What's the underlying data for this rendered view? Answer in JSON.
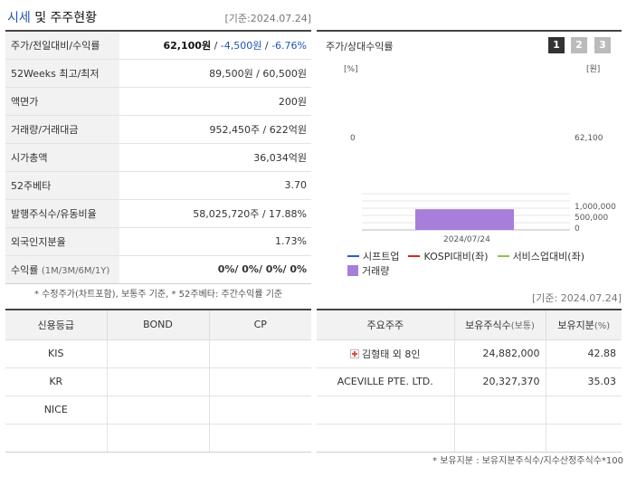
{
  "header": {
    "title_accent": "시세",
    "title_rest": " 및 주주현황",
    "ref_date": "[기준:2024.07.24]"
  },
  "price_table": {
    "rows": [
      {
        "label": "주가/전일대비/수익률",
        "price": "62,100원",
        "sep1": " / ",
        "change": "-4,500원",
        "sep2": " / ",
        "rate": "-6.76%"
      },
      {
        "label": "52Weeks 최고/최저",
        "value": "89,500원 / 60,500원"
      },
      {
        "label": "액면가",
        "value": "200원"
      },
      {
        "label": "거래량/거래대금",
        "value": "952,450주 / 622억원"
      },
      {
        "label": "시가총액",
        "value": "36,034억원"
      },
      {
        "label": "52주베타",
        "value": "3.70"
      },
      {
        "label": "발행주식수/유동비율",
        "value": "58,025,720주 / 17.88%"
      },
      {
        "label": "외국인지분율",
        "value": "1.73%"
      },
      {
        "label": "수익률",
        "label_small": "(1M/3M/6M/1Y)",
        "value": "0%/ 0%/ 0%/ 0%"
      }
    ],
    "footnote": "* 수정주가(차트포함), 보통주 기준, * 52주베타: 주간수익률 기준"
  },
  "chart": {
    "title": "주가/상대수익률",
    "tabs": [
      "1",
      "2",
      "3"
    ],
    "left_unit": "[%]",
    "right_unit": "[원]",
    "left_zero": "0",
    "right_price": "62,100",
    "volume_ticks": [
      "1,000,000",
      "500,000",
      "0"
    ],
    "x_label": "2024/07/24",
    "legend": [
      {
        "name": "시프트업",
        "color": "#2a5bd7",
        "kind": "line"
      },
      {
        "name": "KOSPI대비(좌)",
        "color": "#d9261c",
        "kind": "line"
      },
      {
        "name": "서비스업대비(좌)",
        "color": "#8bc34a",
        "kind": "line"
      },
      {
        "name": "거래량",
        "color": "#a77ed9",
        "kind": "box"
      }
    ],
    "chart_data": {
      "type": "bar",
      "categories": [
        "2024/07/24"
      ],
      "series": [
        {
          "name": "거래량",
          "values": [
            952450
          ]
        }
      ],
      "ylim": [
        0,
        1000000
      ]
    }
  },
  "rating": {
    "headers": [
      "신용등급",
      "BOND",
      "CP"
    ],
    "rows": [
      [
        "KIS",
        "",
        ""
      ],
      [
        "KR",
        "",
        ""
      ],
      [
        "NICE",
        "",
        ""
      ],
      [
        "",
        "",
        ""
      ]
    ]
  },
  "holders": {
    "ref_date": "[기준: 2024.07.24]",
    "headers": [
      {
        "text": "주요주주",
        "small": ""
      },
      {
        "text": "보유주식수",
        "small": "(보통)"
      },
      {
        "text": "보유지분",
        "small": "(%)"
      }
    ],
    "rows": [
      {
        "name": "김형태 외 8인",
        "shares": "24,882,000",
        "pct": "42.88",
        "expand": true
      },
      {
        "name": "ACEVILLE PTE. LTD.",
        "shares": "20,327,370",
        "pct": "35.03",
        "expand": false
      },
      {
        "name": "",
        "shares": "",
        "pct": "",
        "expand": false
      },
      {
        "name": "",
        "shares": "",
        "pct": "",
        "expand": false
      }
    ],
    "footnote": "* 보유지분 : 보유지분주식수/지수산정주식수*100"
  }
}
